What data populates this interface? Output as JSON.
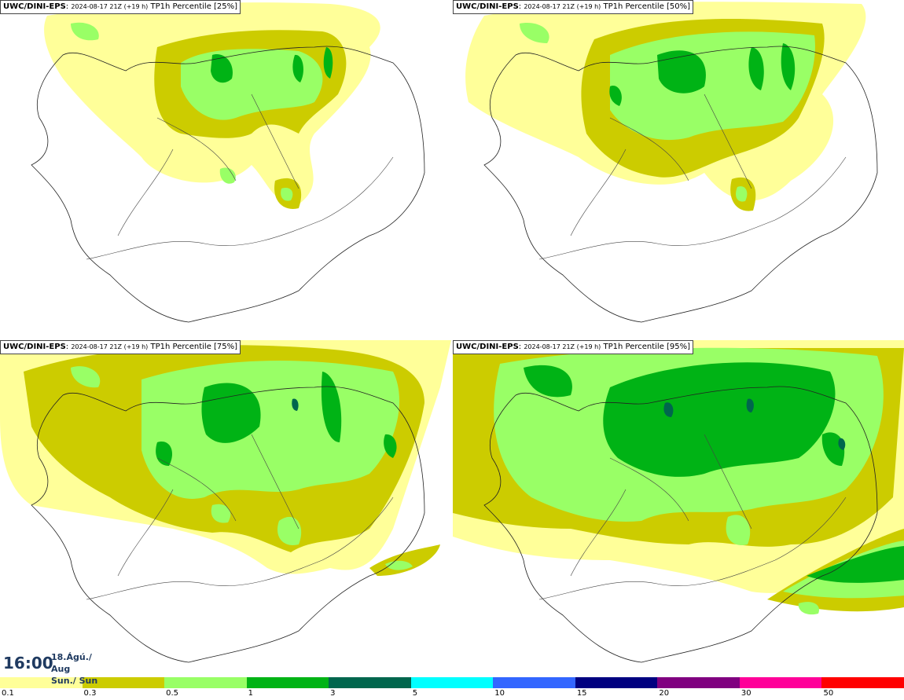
{
  "panels": [
    {
      "model": "UWC/DINI-EPS",
      "run": "2024-08-17 21Z (+19 h)",
      "product": "TP1h Percentile [25%]",
      "percentile": 25
    },
    {
      "model": "UWC/DINI-EPS",
      "run": "2024-08-17 21Z (+19 h)",
      "product": "TP1h Percentile [50%]",
      "percentile": 50
    },
    {
      "model": "UWC/DINI-EPS",
      "run": "2024-08-17 21Z (+19 h)",
      "product": "TP1h Percentile [75%]",
      "percentile": 75
    },
    {
      "model": "UWC/DINI-EPS",
      "run": "2024-08-17 21Z (+19 h)",
      "product": "TP1h Percentile [95%]",
      "percentile": 95
    }
  ],
  "valid_time": {
    "time": "16:00",
    "date": "18.Ágú./ Aug",
    "day": "Sun./ Sun"
  },
  "legend": {
    "colors": [
      "#ffff99",
      "#cccc00",
      "#99ff66",
      "#00b315",
      "#00664d",
      "#00ffff",
      "#3366ff",
      "#000080",
      "#800080",
      "#ff0099",
      "#ff0000"
    ],
    "labels": [
      "0.1",
      "0.3",
      "0.5",
      "1",
      "3",
      "5",
      "10",
      "15",
      "20",
      "30",
      "50"
    ]
  }
}
